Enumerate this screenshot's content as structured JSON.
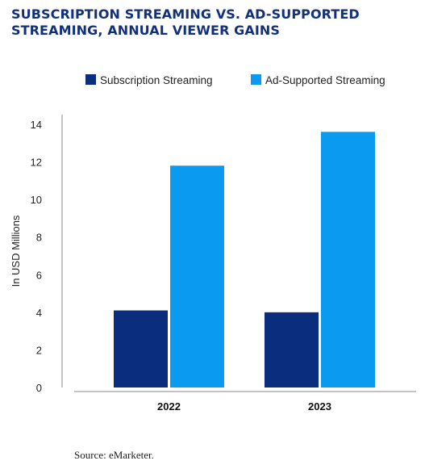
{
  "colors": {
    "title": "#12317a",
    "subscription": "#0b2d7e",
    "ad_supported": "#0a9bf0",
    "axis": "#888888"
  },
  "source": "Source: eMarketer.",
  "chart_data": {
    "type": "bar",
    "title": "SUBSCRIPTION STREAMING VS. AD-SUPPORTED STREAMING, ANNUAL VIEWER GAINS",
    "xlabel": "",
    "ylabel": "In USD Millions",
    "categories": [
      "2022",
      "2023"
    ],
    "series": [
      {
        "name": "Subscription Streaming",
        "values": [
          4.1,
          4.0
        ]
      },
      {
        "name": "Ad-Supported Streaming",
        "values": [
          11.8,
          13.6
        ]
      }
    ],
    "ylim": [
      0,
      14
    ],
    "yticks": [
      0,
      2,
      4,
      6,
      8,
      10,
      12,
      14
    ],
    "legend_position": "top",
    "grid": false
  }
}
